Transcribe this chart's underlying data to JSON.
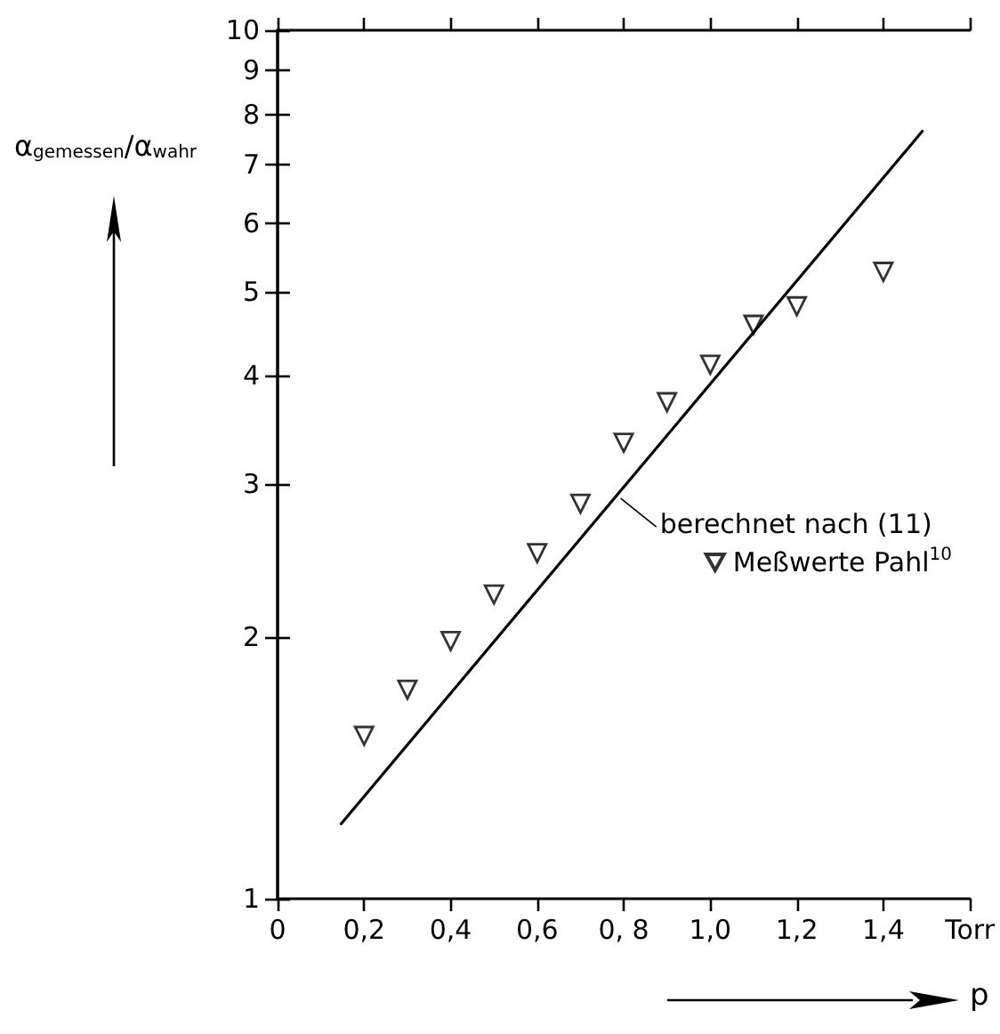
{
  "chart_data": {
    "type": "scatter",
    "xlabel": "p",
    "ylabel": "α$_{gemessen}$/α$_{wahr}$",
    "xlim": [
      0,
      1.6
    ],
    "xticks": [
      0,
      {
        "value": 0.2,
        "label": "0,2"
      },
      {
        "value": 0.4,
        "label": "0,4"
      },
      {
        "value": 0.6,
        "label": "0,6"
      },
      {
        "value": 0.8,
        "label": "0, 8"
      },
      {
        "value": 1.0,
        "label": "1,0"
      },
      {
        "value": 1.2,
        "label": "1,2"
      },
      {
        "value": 1.4,
        "label": "1,4"
      },
      {
        "value": 1.6,
        "label": "Torr"
      }
    ],
    "ylim": [
      1,
      10
    ],
    "yticks": [
      1,
      2,
      3,
      4,
      5,
      6,
      7,
      8,
      9,
      10
    ],
    "log": "y",
    "grid": false,
    "legend": "right",
    "series": [
      {
        "type": "line",
        "name": "berechnet nach (11)",
        "color": "#000000",
        "line_style": "solid",
        "x": [
          0.147,
          1.49
        ],
        "values": [
          1.22,
          7.65
        ]
      },
      {
        "type": "scatter",
        "name": "Meßwerte Pahl$^{10}$",
        "color": "#000000",
        "marker": "triangle",
        "x": [
          0.2,
          0.3,
          0.4,
          0.5,
          0.6,
          0.7,
          0.8,
          0.9,
          1.0,
          1.1,
          1.2,
          1.4
        ],
        "values": [
          1.54,
          1.74,
          1.98,
          2.24,
          2.5,
          2.85,
          3.35,
          3.73,
          4.12,
          4.58,
          4.81,
          5.27
        ]
      }
    ]
  }
}
